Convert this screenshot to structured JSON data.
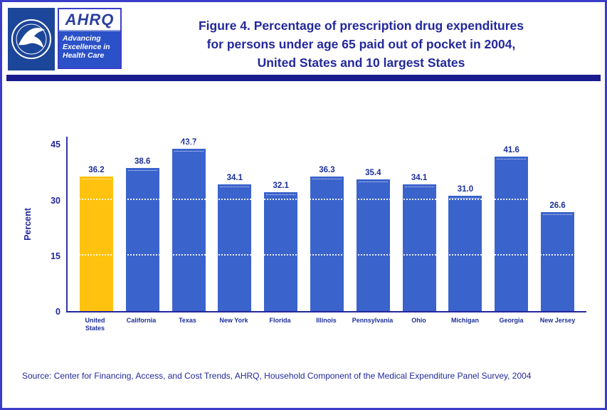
{
  "header": {
    "ahrq": {
      "name": "AHRQ",
      "tagline_lines": [
        "Advancing",
        "Excellence in",
        "Health Care"
      ]
    },
    "title_lines": [
      "Figure 4. Percentage of prescription drug expenditures",
      "for persons under age 65 paid out of pocket in 2004,",
      "United States and 10 largest States"
    ]
  },
  "chart_data": {
    "type": "bar",
    "title": "Figure 4. Percentage of prescription drug expenditures for persons under age 65 paid out of pocket in 2004, United States and 10 largest States",
    "ylabel": "Percent",
    "xlabel": "",
    "ylim": [
      0,
      45
    ],
    "yticks": [
      0,
      15,
      30,
      45
    ],
    "grid": false,
    "legend": "none",
    "categories": [
      "United States",
      "California",
      "Texas",
      "New York",
      "Florida",
      "Illinois",
      "Pennsylvania",
      "Ohio",
      "Michigan",
      "Georgia",
      "New Jersey"
    ],
    "category_lines": [
      [
        "United",
        "States"
      ],
      [
        "California"
      ],
      [
        "Texas"
      ],
      [
        "New York"
      ],
      [
        "Florida"
      ],
      [
        "Illinois"
      ],
      [
        "Pennsylvania"
      ],
      [
        "Ohio"
      ],
      [
        "Michigan"
      ],
      [
        "Georgia"
      ],
      [
        "New Jersey"
      ]
    ],
    "values": [
      36.2,
      38.6,
      43.7,
      34.1,
      32.1,
      36.3,
      35.4,
      34.1,
      31.0,
      41.6,
      26.6
    ],
    "value_labels": [
      "36.2",
      "38.6",
      "43.7",
      "34.1",
      "32.1",
      "36.3",
      "35.4",
      "34.1",
      "31.0",
      "41.6",
      "26.6"
    ],
    "highlight_index": 0,
    "colors": {
      "bar": "#3b63cc",
      "highlight_bar": "#ffc20e",
      "text": "#23289b",
      "axis": "#3037a8"
    }
  },
  "footer": {
    "source": "Source: Center for Financing, Access, and Cost Trends, AHRQ, Household Component of the Medical Expenditure Panel Survey, 2004"
  }
}
